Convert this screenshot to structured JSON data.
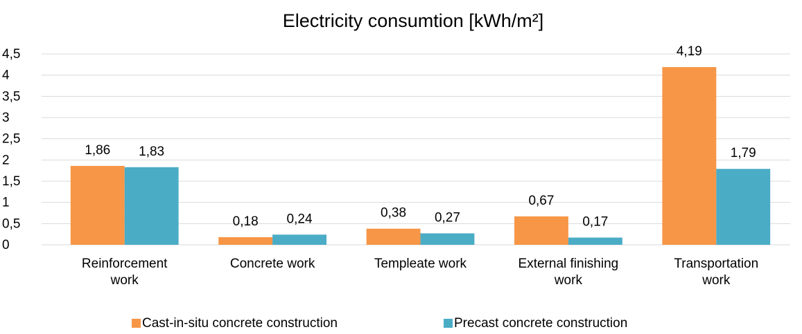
{
  "chart_data": {
    "type": "bar",
    "title": "Electricity consumtion [kWh/m²]",
    "categories": [
      "Reinforcement work",
      "Concrete work",
      "Templeate work",
      "External finishing work",
      "Transportation work"
    ],
    "series": [
      {
        "name": "Cast-in-situ concrete construction",
        "color": "#f79646",
        "values": [
          1.86,
          0.18,
          0.38,
          0.67,
          4.19
        ],
        "value_labels": [
          "1,86",
          "0,18",
          "0,38",
          "0,67",
          "4,19"
        ]
      },
      {
        "name": "Precast concrete construction",
        "color": "#4bacc6",
        "values": [
          1.83,
          0.24,
          0.27,
          0.17,
          1.79
        ],
        "value_labels": [
          "1,83",
          "0,24",
          "0,27",
          "0,17",
          "1,79"
        ]
      }
    ],
    "ylim": [
      0,
      4.5
    ],
    "yticks": [
      0,
      {
        "value": 0.5,
        "label": "0,5"
      },
      1,
      {
        "value": 1.5,
        "label": "1,5"
      },
      2,
      {
        "value": 2.5,
        "label": "2,5"
      },
      3,
      {
        "value": 3.5,
        "label": "3,5"
      },
      4,
      {
        "value": 4.5,
        "label": "4,5"
      }
    ],
    "grid": true,
    "legend": "bottom"
  }
}
